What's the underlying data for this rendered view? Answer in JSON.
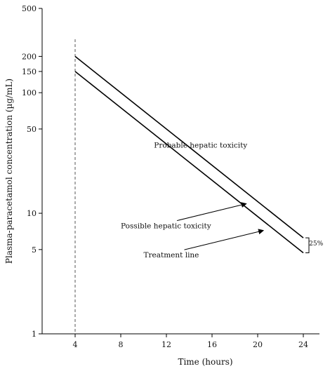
{
  "chart_data": {
    "type": "line",
    "title": "",
    "xlabel": "Time (hours)",
    "ylabel": "Plasma-paracetamol concentration (µg/mL)",
    "yscale": "log",
    "xlim": [
      0,
      25
    ],
    "ylim": [
      1,
      500
    ],
    "x_ticks": [
      4,
      8,
      12,
      16,
      20,
      24
    ],
    "x_tick_labels": [
      "4",
      "8",
      "12",
      "16",
      "20",
      "24"
    ],
    "y_ticks": [
      1,
      5,
      10,
      50,
      100,
      150,
      200,
      500
    ],
    "y_tick_labels": [
      "1",
      "5",
      "10",
      "50",
      "100",
      "150",
      "200",
      "500"
    ],
    "grid": false,
    "reference_line": {
      "axis": "x",
      "value": 4,
      "style": "dashed"
    },
    "series": [
      {
        "x": [
          4,
          24
        ],
        "y": [
          200,
          6.25
        ]
      },
      {
        "x": [
          4,
          24
        ],
        "y": [
          150,
          4.7
        ]
      }
    ],
    "annotations": [
      {
        "text": "Probable hepatic toxicity",
        "x": 15,
        "y": 35
      },
      {
        "text": "Possible hepatic toxicity",
        "x": 8,
        "y": 7.5,
        "arrow_to": [
          19,
          12
        ]
      },
      {
        "text": "Treatment line",
        "x": 10,
        "y": 4.3,
        "arrow_to": [
          20.5,
          7.2
        ]
      },
      {
        "text": "25%",
        "x": 24.5,
        "y": 5.4
      }
    ],
    "colors": {
      "line": "#000000",
      "axis": "#000000",
      "reference": "#555555"
    }
  }
}
